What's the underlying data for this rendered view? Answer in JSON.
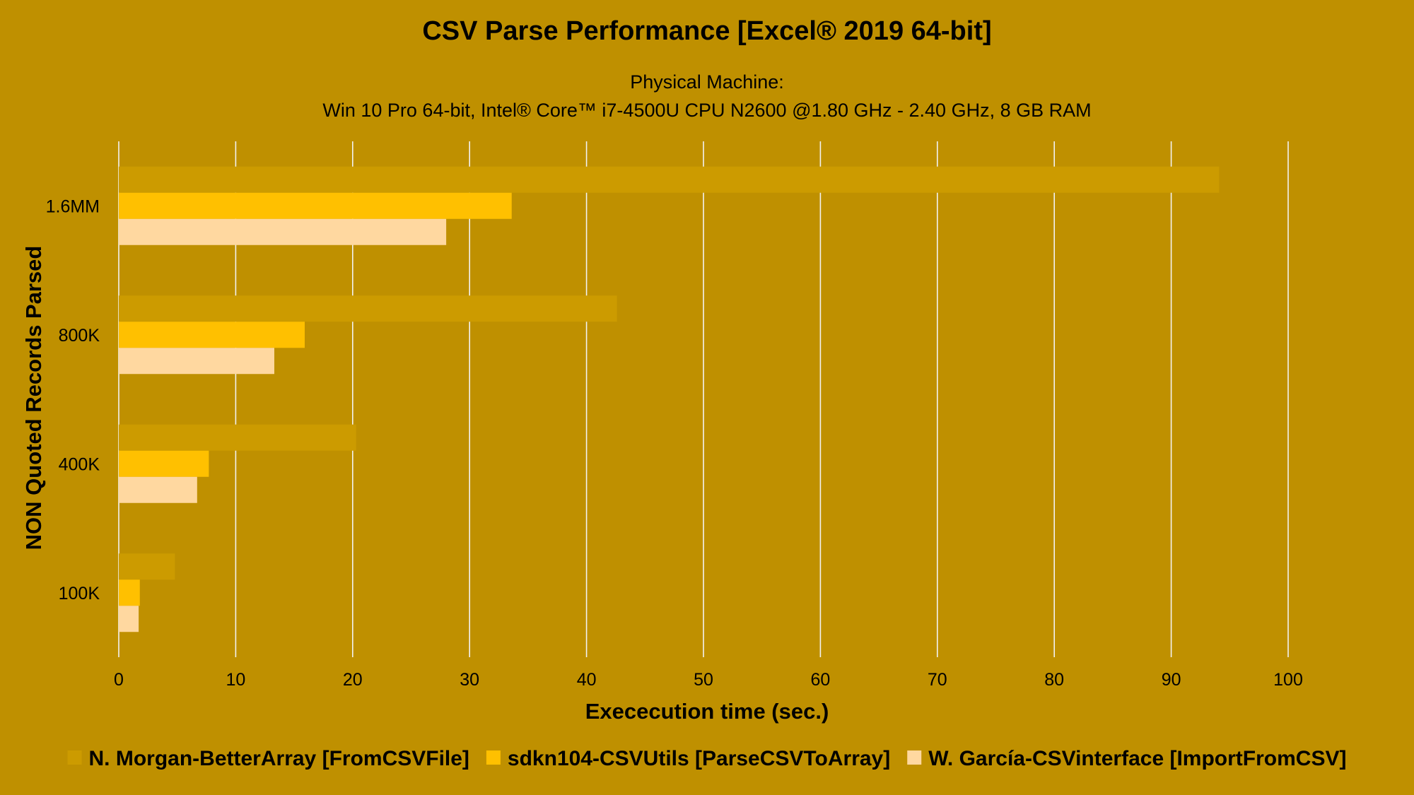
{
  "chart_data": {
    "type": "bar",
    "orientation": "horizontal",
    "title": "CSV Parse Performance [Excel® 2019 64-bit]",
    "subtitle_lines": [
      "Physical Machine:",
      "Win 10 Pro 64-bit, Intel® Core™ i7-4500U CPU N2600 @1.80 GHz - 2.40 GHz, 8 GB RAM"
    ],
    "xlabel": "Exececution time (sec.)",
    "ylabel": "NON Quoted Records Parsed",
    "xlim": [
      0,
      100
    ],
    "xticks": [
      0,
      10,
      20,
      30,
      40,
      50,
      60,
      70,
      80,
      90,
      100
    ],
    "grid": true,
    "legend_position": "bottom",
    "categories": [
      "1.6MM",
      "800K",
      "400K",
      "100K"
    ],
    "series": [
      {
        "name": "N. Morgan-BetterArray [FromCSVFile]",
        "color": "#CC9B00",
        "values": [
          94.1,
          42.6,
          20.3,
          4.8
        ]
      },
      {
        "name": "sdkn104-CSVUtils [ParseCSVToArray]",
        "color": "#FFC000",
        "values": [
          33.6,
          15.9,
          7.7,
          1.8
        ]
      },
      {
        "name": "W. García-CSVinterface [ImportFromCSV]",
        "color": "#FFD8A0",
        "values": [
          28.0,
          13.3,
          6.7,
          1.7
        ]
      }
    ]
  },
  "colors": {
    "background": "#BF9000",
    "gridline": "#F2F2F2",
    "text": "#000000"
  }
}
